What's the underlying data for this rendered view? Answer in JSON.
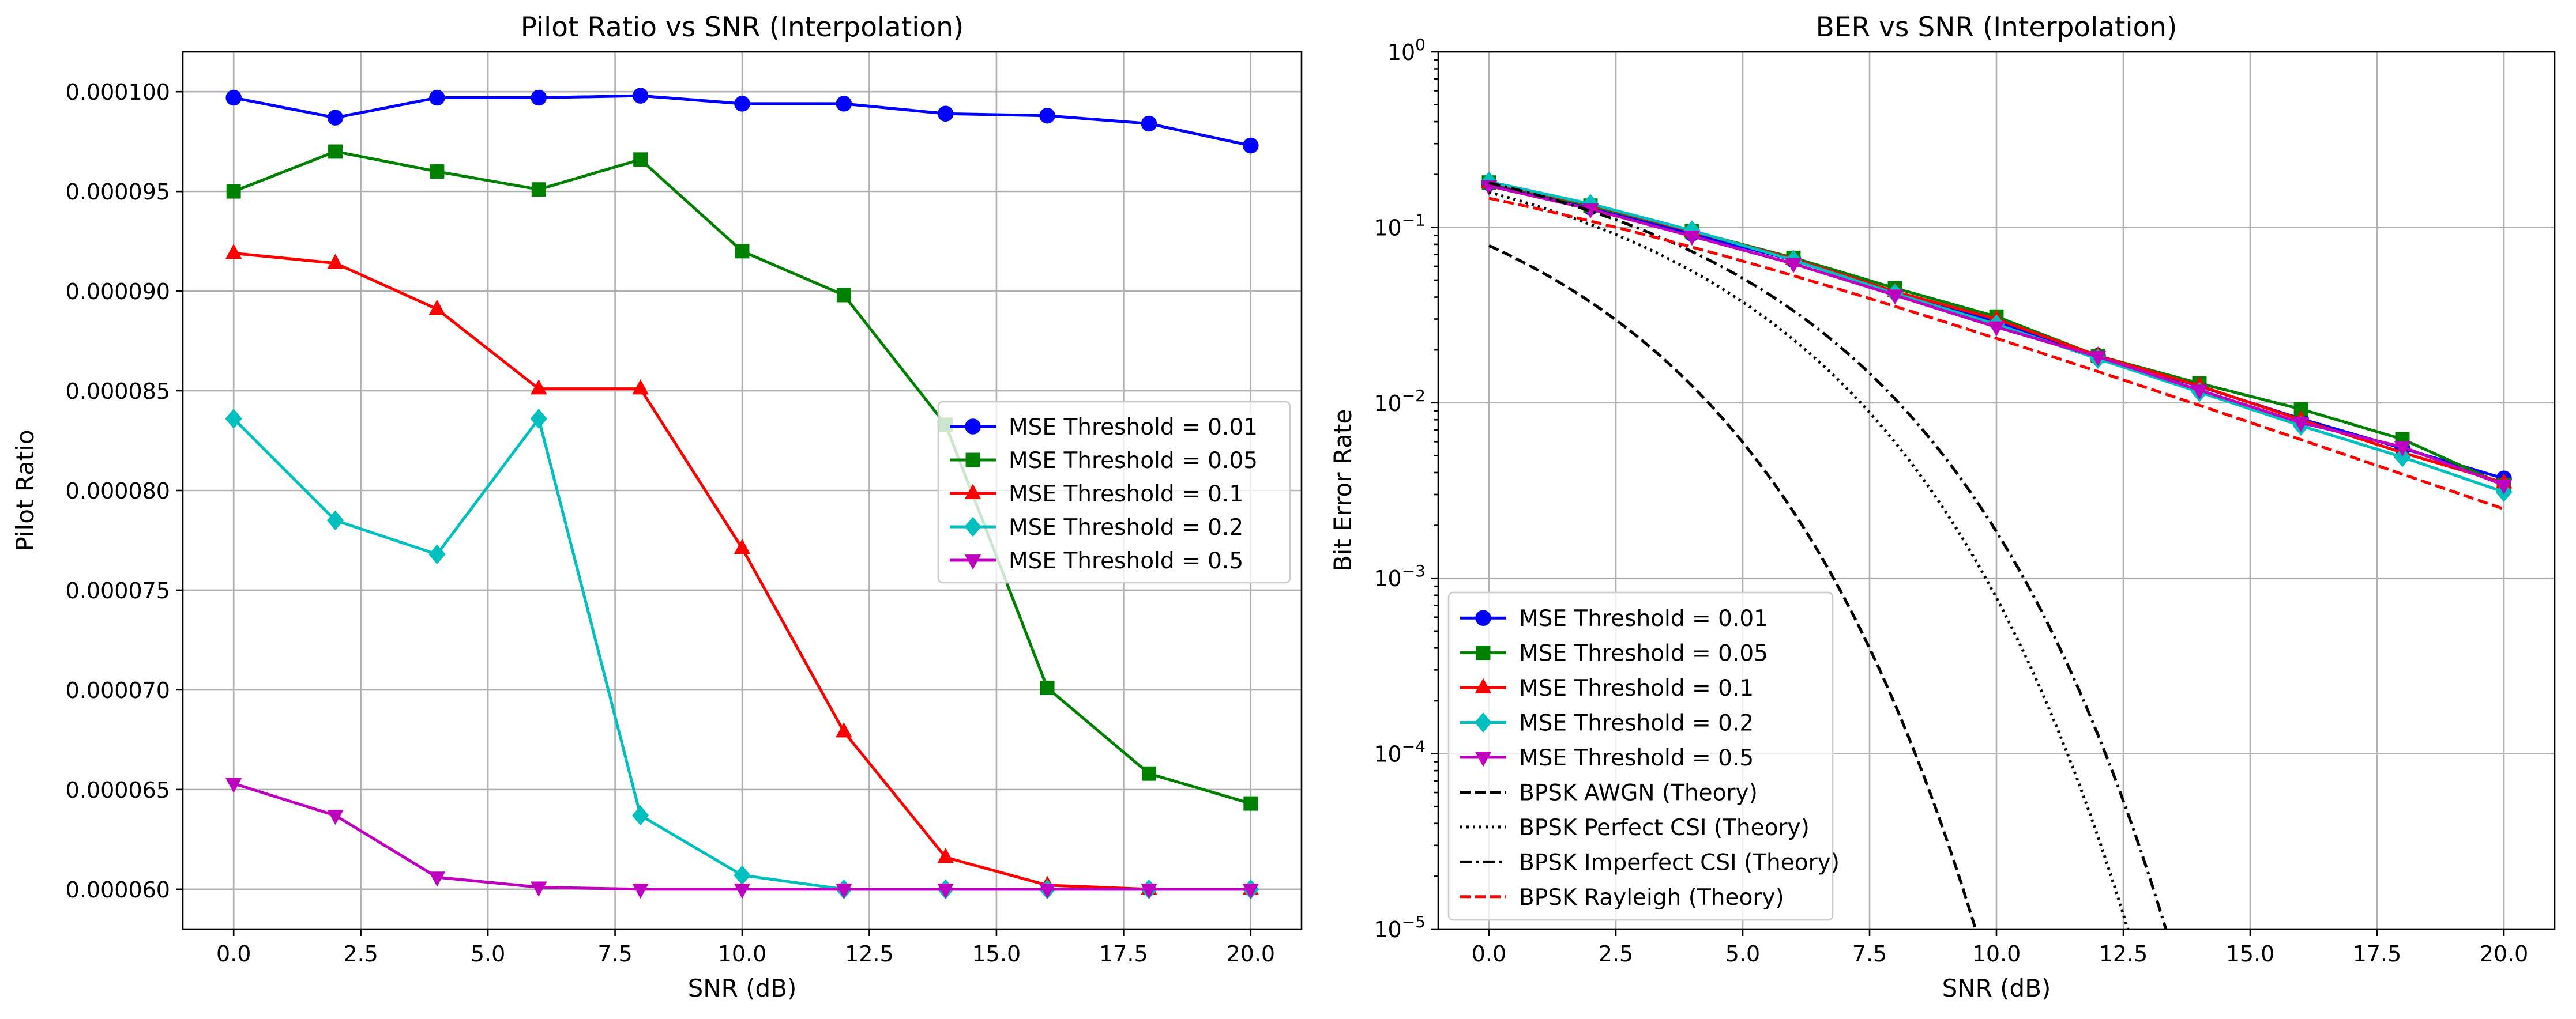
{
  "chart_data": [
    {
      "id": "left",
      "type": "line",
      "title": "Pilot Ratio vs SNR (Interpolation)",
      "xlabel": "SNR (dB)",
      "ylabel": "Pilot Ratio",
      "xlim": [
        -1.0,
        21.0
      ],
      "ylim": [
        5.8e-05,
        0.000102
      ],
      "xticks": [
        0.0,
        2.5,
        5.0,
        7.5,
        10.0,
        12.5,
        15.0,
        17.5,
        20.0
      ],
      "xtick_labels": [
        "0.0",
        "2.5",
        "5.0",
        "7.5",
        "10.0",
        "12.5",
        "15.0",
        "17.5",
        "20.0"
      ],
      "yticks": [
        6e-05,
        6.5e-05,
        7e-05,
        7.5e-05,
        8e-05,
        8.5e-05,
        9e-05,
        9.5e-05,
        0.0001
      ],
      "ytick_labels": [
        "0.000060",
        "0.000065",
        "0.000070",
        "0.000075",
        "0.000080",
        "0.000085",
        "0.000090",
        "0.000095",
        "0.000100"
      ],
      "yscale": "linear",
      "grid": true,
      "legend_position": "center-right",
      "x": [
        0,
        2,
        4,
        6,
        8,
        10,
        12,
        14,
        16,
        18,
        20
      ],
      "series": [
        {
          "name": "MSE Threshold = 0.01",
          "color": "#0000ff",
          "marker": "circle",
          "dash": "solid",
          "values": [
            9.97e-05,
            9.87e-05,
            9.97e-05,
            9.97e-05,
            9.98e-05,
            9.94e-05,
            9.94e-05,
            9.89e-05,
            9.88e-05,
            9.84e-05,
            9.73e-05
          ]
        },
        {
          "name": "MSE Threshold = 0.05",
          "color": "#008000",
          "marker": "square",
          "dash": "solid",
          "values": [
            9.5e-05,
            9.7e-05,
            9.6e-05,
            9.51e-05,
            9.66e-05,
            9.2e-05,
            8.98e-05,
            8.33e-05,
            7.01e-05,
            6.58e-05,
            6.43e-05
          ]
        },
        {
          "name": "MSE Threshold = 0.1",
          "color": "#ff0000",
          "marker": "triangle-up",
          "dash": "solid",
          "values": [
            9.19e-05,
            9.14e-05,
            8.91e-05,
            8.51e-05,
            8.51e-05,
            7.71e-05,
            6.79e-05,
            6.16e-05,
            6.02e-05,
            6e-05,
            6e-05
          ]
        },
        {
          "name": "MSE Threshold = 0.2",
          "color": "#00bfbf",
          "marker": "diamond",
          "dash": "solid",
          "values": [
            8.36e-05,
            7.85e-05,
            7.68e-05,
            8.36e-05,
            6.37e-05,
            6.07e-05,
            6e-05,
            6e-05,
            6e-05,
            6e-05,
            6e-05
          ]
        },
        {
          "name": "MSE Threshold = 0.5",
          "color": "#bf00bf",
          "marker": "triangle-down",
          "dash": "solid",
          "values": [
            6.53e-05,
            6.37e-05,
            6.06e-05,
            6.01e-05,
            6e-05,
            6e-05,
            6e-05,
            6e-05,
            6e-05,
            6e-05,
            6e-05
          ]
        }
      ]
    },
    {
      "id": "right",
      "type": "line",
      "title": "BER vs SNR (Interpolation)",
      "xlabel": "SNR (dB)",
      "ylabel": "Bit Error Rate",
      "xlim": [
        -1.0,
        21.0
      ],
      "ylim": [
        1e-05,
        1
      ],
      "xticks": [
        0.0,
        2.5,
        5.0,
        7.5,
        10.0,
        12.5,
        15.0,
        17.5,
        20.0
      ],
      "xtick_labels": [
        "0.0",
        "2.5",
        "5.0",
        "7.5",
        "10.0",
        "12.5",
        "15.0",
        "17.5",
        "20.0"
      ],
      "yticks": [
        1e-05,
        0.0001,
        0.001,
        0.01,
        0.1,
        1
      ],
      "ytick_labels": [
        {
          "base": "10",
          "exp": "−5"
        },
        {
          "base": "10",
          "exp": "−4"
        },
        {
          "base": "10",
          "exp": "−3"
        },
        {
          "base": "10",
          "exp": "−2"
        },
        {
          "base": "10",
          "exp": "−1"
        },
        {
          "base": "10",
          "exp": "0"
        }
      ],
      "yscale": "log",
      "grid": true,
      "legend_position": "lower-left",
      "x": [
        0,
        2,
        4,
        6,
        8,
        10,
        12,
        14,
        16,
        18,
        20
      ],
      "series": [
        {
          "name": "MSE Threshold = 0.01",
          "color": "#0000ff",
          "marker": "circle",
          "dash": "solid",
          "values": [
            0.178,
            0.13,
            0.092,
            0.065,
            0.043,
            0.029,
            0.0185,
            0.0124,
            0.0081,
            0.0055,
            0.0037
          ]
        },
        {
          "name": "MSE Threshold = 0.05",
          "color": "#008000",
          "marker": "square",
          "dash": "solid",
          "values": [
            0.18,
            0.133,
            0.095,
            0.067,
            0.045,
            0.031,
            0.0185,
            0.0129,
            0.0092,
            0.0062,
            0.0034
          ]
        },
        {
          "name": "MSE Threshold = 0.1",
          "color": "#ff0000",
          "marker": "triangle-up",
          "dash": "solid",
          "values": [
            0.18,
            0.135,
            0.095,
            0.066,
            0.043,
            0.03,
            0.0185,
            0.0125,
            0.008,
            0.0052,
            0.0035
          ]
        },
        {
          "name": "MSE Threshold = 0.2",
          "color": "#00bfbf",
          "marker": "diamond",
          "dash": "solid",
          "values": [
            0.182,
            0.136,
            0.096,
            0.065,
            0.042,
            0.028,
            0.0178,
            0.0115,
            0.0074,
            0.0049,
            0.0031
          ]
        },
        {
          "name": "MSE Threshold = 0.5",
          "color": "#bf00bf",
          "marker": "triangle-down",
          "dash": "solid",
          "values": [
            0.172,
            0.127,
            0.089,
            0.062,
            0.041,
            0.027,
            0.0183,
            0.0118,
            0.0077,
            0.0056,
            0.0034
          ]
        },
        {
          "name": "BPSK AWGN (Theory)",
          "color": "#000000",
          "marker": "none",
          "dash": "dashed",
          "formula": "awgn"
        },
        {
          "name": "BPSK Perfect CSI (Theory)",
          "color": "#000000",
          "marker": "none",
          "dash": "dotted",
          "formula": "perfect_csi"
        },
        {
          "name": "BPSK Imperfect CSI (Theory)",
          "color": "#000000",
          "marker": "none",
          "dash": "dashdot",
          "formula": "imperfect_csi"
        },
        {
          "name": "BPSK Rayleigh (Theory)",
          "color": "#ff0000",
          "marker": "none",
          "dash": "dashed",
          "formula": "rayleigh"
        }
      ]
    }
  ]
}
